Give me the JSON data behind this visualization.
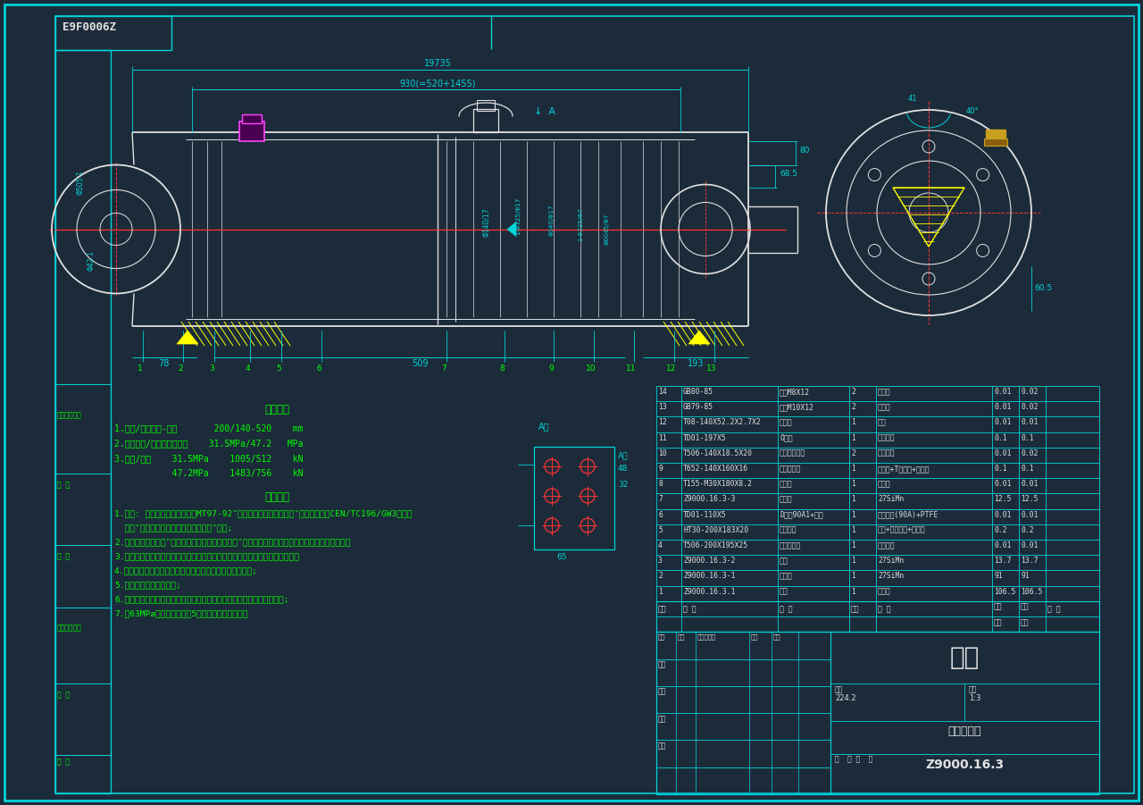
{
  "bg_color": "#1c2b3a",
  "border_color": "#00d4d8",
  "line_color": "#00d4d8",
  "text_color_green": "#00ff00",
  "text_color_white": "#e0e0e0",
  "text_color_yellow": "#ffff00",
  "text_color_red": "#ff3333",
  "text_color_magenta": "#ff44ff",
  "drawing_title": "E9F0006Z",
  "part_number": "Z9000.16.3",
  "description": "平衡千斤顶",
  "title_label": "部件",
  "tech_title1": "技术特征",
  "tech_title2": "技术要求",
  "tech_specs": [
    "1.缸径/活塞杆径-行程       200/140-520    mm",
    "2.工作压力/安全阀设定压力    31.5MPa/47.2   MPa",
    "3.推力/拉力    31.5MPa    1005/512    kN",
    "           47.2MPa    1483/756    kN"
  ],
  "tech_reqs": [
    "1.组装: 由厂性能和外观验证按MT97-92\"液压支架千斤顶技术条件\"以及欧测标准CEN/TC196/GW3中第二",
    "  部分\"支架立柱和千斤顶的安全性要求\"执行;",
    "2.试装检验合格后装\"支架、立柱及千斤顶喷漆要求\"先刮防锈底漆，再喷面漆（颜色按用户要求）；",
    "3.以单独产品出厂时，需采取防锈、防水、防尘措施，而进液口加塑料管封严。",
    "4.装配前各零件应充分清洗，去掉毛刺，螺纹油脂稀松松胶;",
    "5.零件配合表面不得损伤;",
    "6.装配后试运动作应灵活，全行程无窜卡阻等现象，并将其调至最短位置;",
    "7.做63MPa试验后压力维压5分钟不得有外渗现象。"
  ],
  "bom_rows": [
    [
      "14",
      "GB80-85",
      "螺钉M8X12",
      "2",
      "不锈钢",
      "0.01",
      "0.02",
      ""
    ],
    [
      "13",
      "GB79-85",
      "螺钉M10X12",
      "2",
      "不锈钢",
      "0.01",
      "0.02",
      ""
    ],
    [
      "12",
      "T08-140X52.2X2.7X2",
      "挡尘圈",
      "1",
      "厚腈",
      "0.01",
      "0.01",
      ""
    ],
    [
      "11",
      "TD01-197X5",
      "O型圈",
      "1",
      "丁腈橡胶",
      "0.1",
      "0.1",
      ""
    ],
    [
      "10",
      "T506-140X18.5X20",
      "活塞杆导向环",
      "2",
      "夹布夹条",
      "0.01",
      "0.02",
      ""
    ],
    [
      "9",
      "T652-140X160X16",
      "活塞杆填封",
      "1",
      "见图纸+T腈橡胶+星形管",
      "0.1",
      "0.1",
      ""
    ],
    [
      "8",
      "T155-M30X180X8.2",
      "锁紧帽",
      "1",
      "渗氮钢",
      "0.01",
      "0.01",
      ""
    ],
    [
      "7",
      "Z9000.16.3-3",
      "导向套",
      "1",
      "27SiMn",
      "12.5",
      "12.5",
      ""
    ],
    [
      "6",
      "TD01-110X5",
      "D型腈90A1+密封",
      "1",
      "丁腈橡胶(90A)+PTFE",
      "0.01",
      "0.01",
      ""
    ],
    [
      "5",
      "HT30-200X183X20",
      "活塞密封",
      "1",
      "夹腈+丁腈橡胶+星形管",
      "0.2",
      "0.2",
      ""
    ],
    [
      "4",
      "T506-200X195X25",
      "活塞导向环",
      "1",
      "夹布夹条",
      "0.01",
      "0.01",
      ""
    ],
    [
      "3",
      "Z9000.16.3-2",
      "活塞",
      "1",
      "27SiMn",
      "13.7",
      "13.7",
      ""
    ],
    [
      "2",
      "Z9000.16.3-1",
      "活塞杆",
      "1",
      "27SiMn",
      "91",
      "91",
      ""
    ],
    [
      "1",
      "Z9000.16.3.1",
      "缸体",
      "1",
      "焊接件",
      "106.5",
      "106.5",
      ""
    ]
  ],
  "weight_total": "224.2",
  "weight_scale": "1:3",
  "dim_overall": "19735",
  "dim_stroke": "930(=520+1455)",
  "dim_78": "78",
  "dim_509": "509",
  "dim_193": "193",
  "dim_80": "80",
  "dim_685": "68.5",
  "dim_605": "60.5",
  "dim_41": "41",
  "dim_40": "40°",
  "left_block_labels": [
    "管理图样审定",
    "审  阅",
    "校  核",
    "标准图样审定",
    "审  定",
    "归  案"
  ]
}
